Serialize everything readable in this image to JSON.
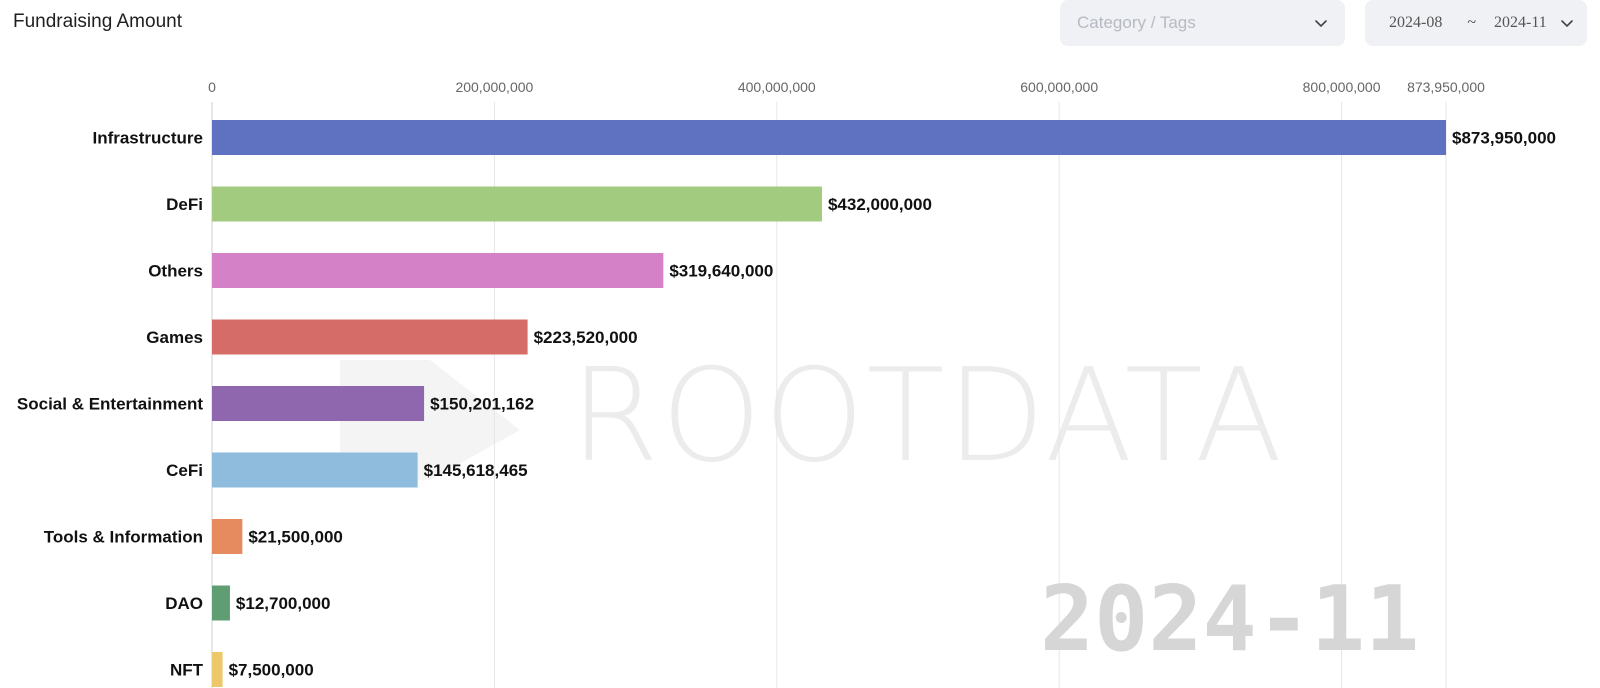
{
  "header": {
    "title": "Fundraising Amount",
    "category_placeholder": "Category / Tags",
    "date_from": "2024-08",
    "date_sep": "~",
    "date_to": "2024-11"
  },
  "watermark": {
    "brand": "ROOTDATA",
    "period": "2024-11"
  },
  "colors": {
    "grid": "#e6e6e6",
    "axis_text": "#666666",
    "label_text": "#111111"
  },
  "chart_data": {
    "type": "bar",
    "orientation": "horizontal",
    "title": "Fundraising Amount",
    "xlim": [
      0,
      873950000
    ],
    "x_ticks": [
      0,
      200000000,
      400000000,
      600000000,
      800000000,
      873950000
    ],
    "x_tick_labels": [
      "0",
      "200,000,000",
      "400,000,000",
      "600,000,000",
      "800,000,000",
      "873,950,000"
    ],
    "categories": [
      "Infrastructure",
      "DeFi",
      "Others",
      "Games",
      "Social & Entertainment",
      "CeFi",
      "Tools & Information",
      "DAO",
      "NFT"
    ],
    "values": [
      873950000,
      432000000,
      319640000,
      223520000,
      150201162,
      145618465,
      21500000,
      12700000,
      7500000
    ],
    "value_labels": [
      "$873,950,000",
      "$432,000,000",
      "$319,640,000",
      "$223,520,000",
      "$150,201,162",
      "$145,618,465",
      "$21,500,000",
      "$12,700,000",
      "$7,500,000"
    ],
    "bar_colors": [
      "#5f71c1",
      "#a2cb7f",
      "#d581c7",
      "#d56c67",
      "#8e67ae",
      "#8fbcdc",
      "#e68b60",
      "#5e9e72",
      "#ecc86b"
    ],
    "grid": true
  }
}
